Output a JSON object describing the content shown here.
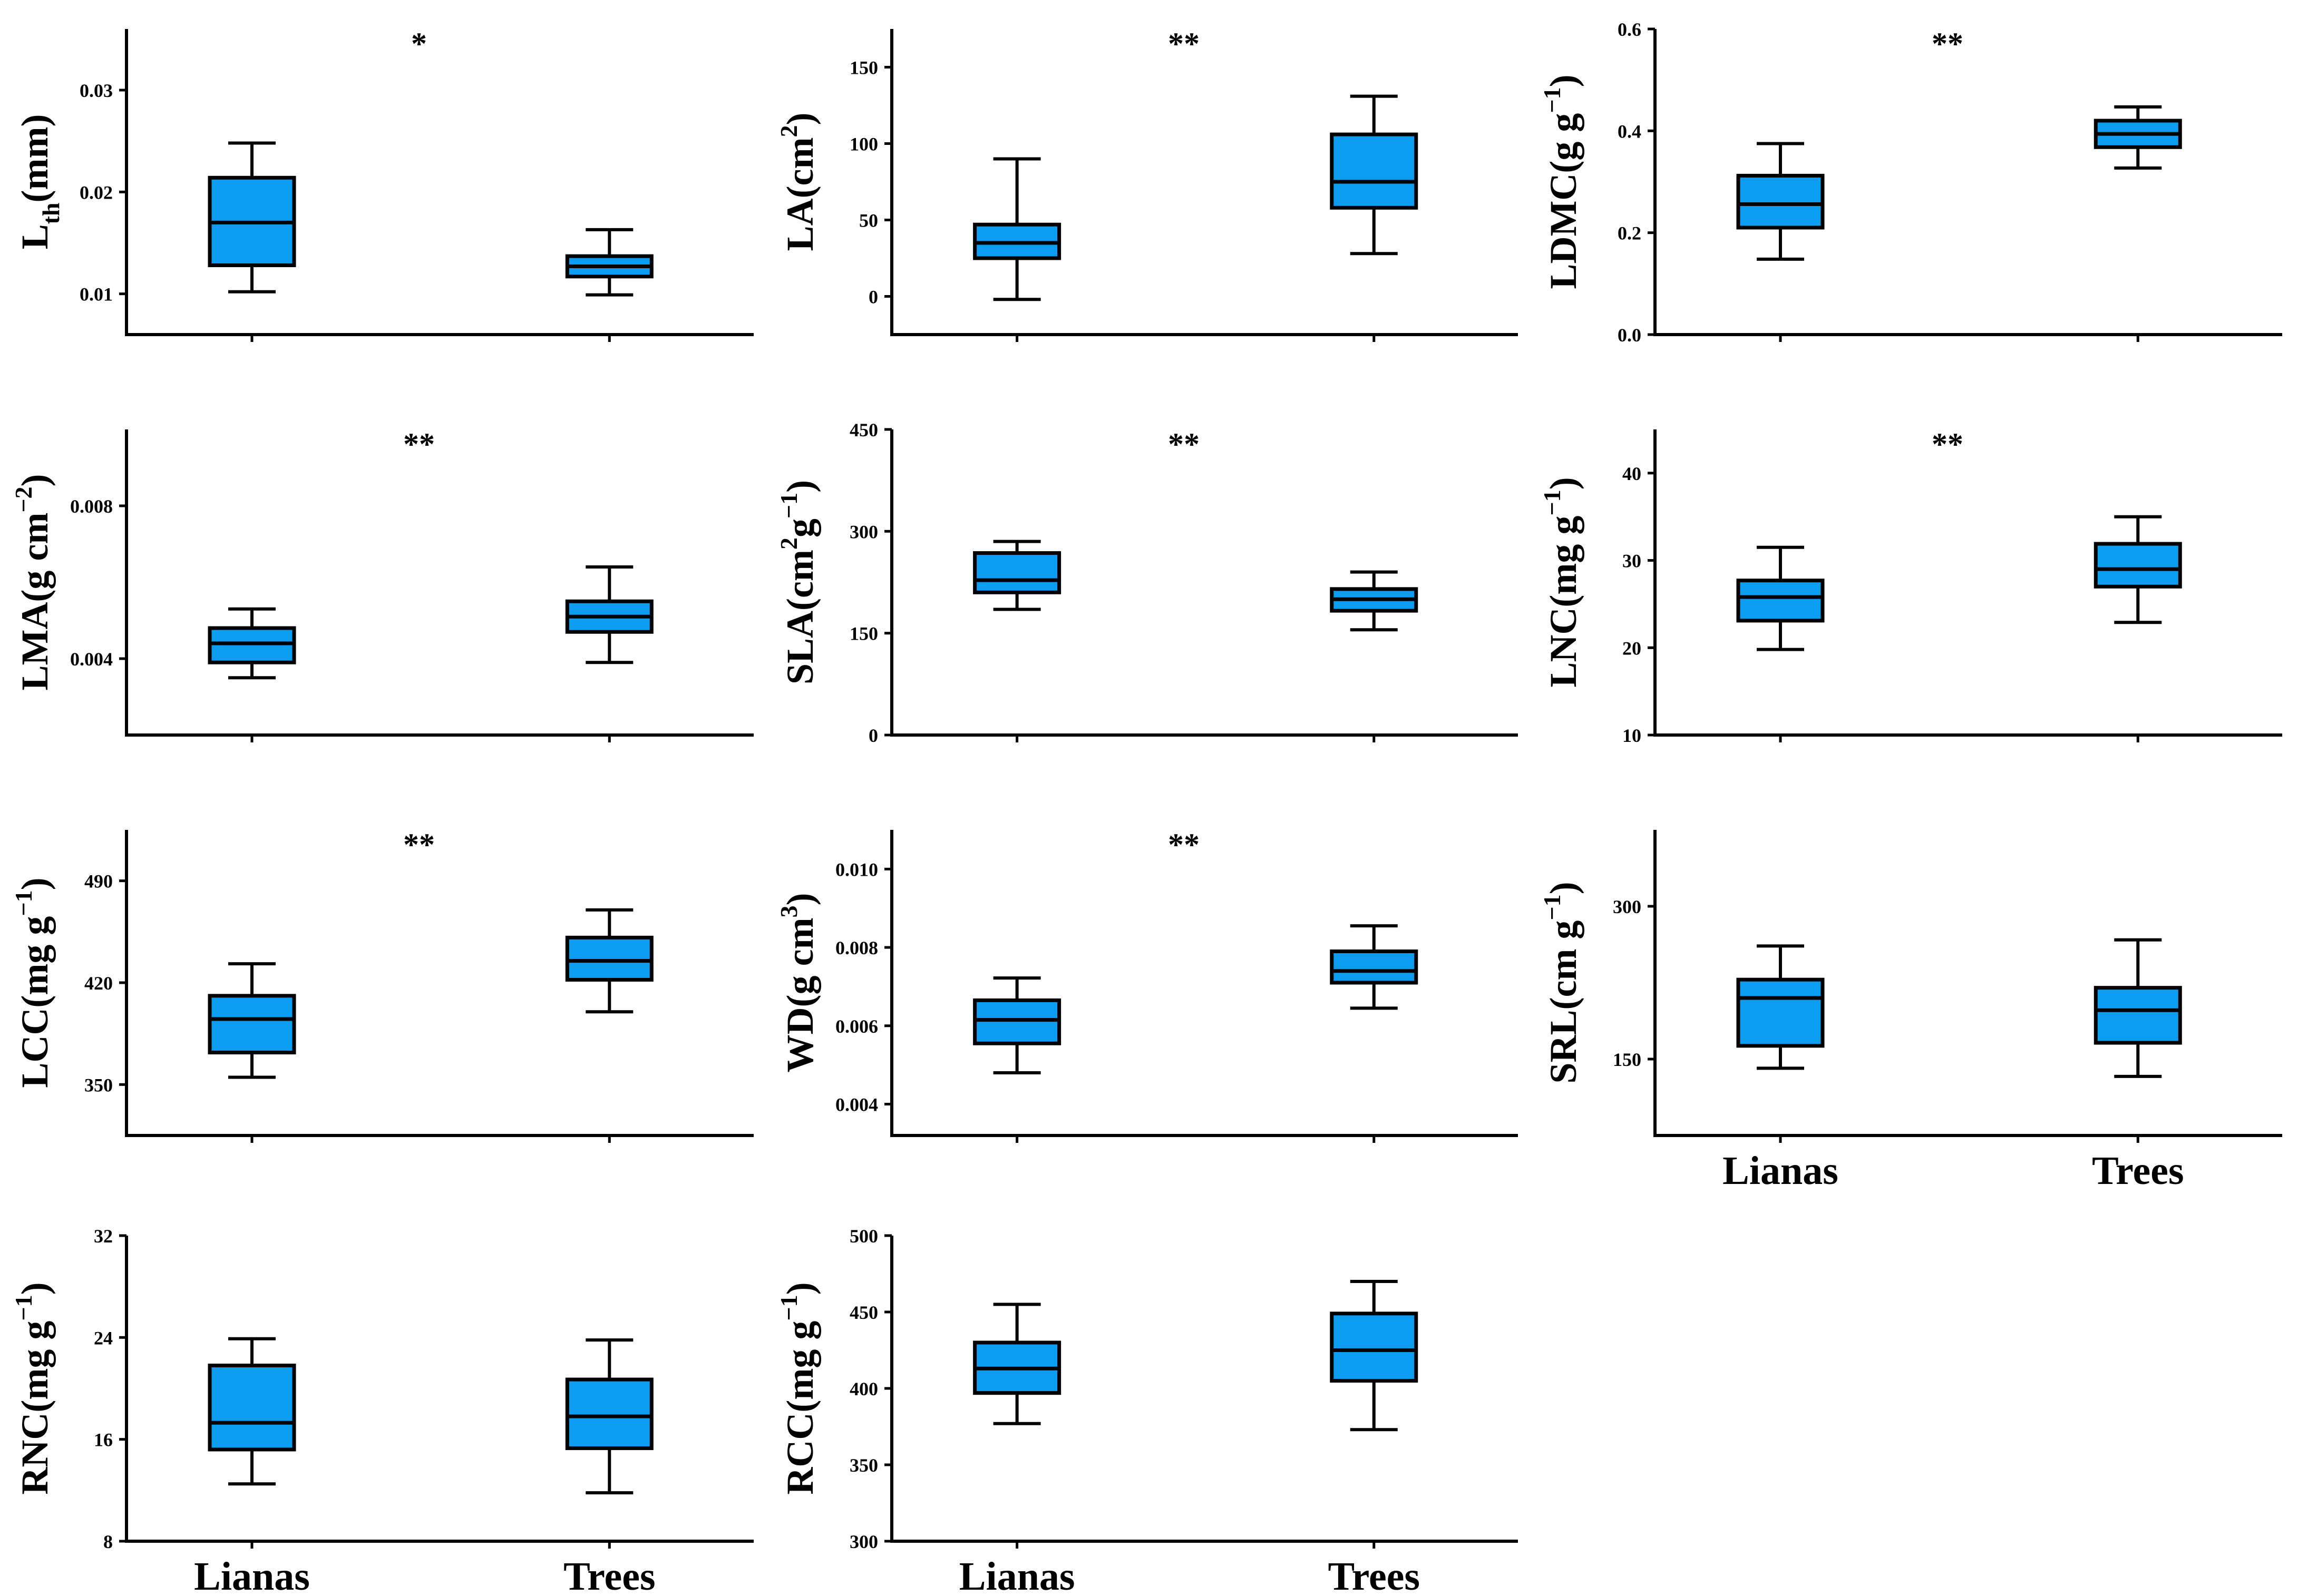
{
  "colors": {
    "box_fill": "#0c9cf0",
    "stroke": "#000000",
    "background": "#ffffff"
  },
  "chart_data": [
    {
      "id": "lth",
      "type": "box",
      "ylabel": "Lth(mm)",
      "ylabel_parts": [
        {
          "t": "L"
        },
        {
          "t": "th",
          "sub": true
        },
        {
          "t": "(mm)"
        }
      ],
      "ylim": [
        0.006,
        0.036
      ],
      "yticks": [
        0.01,
        0.02,
        0.03
      ],
      "tick_labels": [
        "0.01",
        "0.02",
        "0.03"
      ],
      "significance": "*",
      "categories": [
        "Lianas",
        "Trees"
      ],
      "show_category_labels": false,
      "series": [
        {
          "name": "Lianas",
          "whisker_low": 0.0102,
          "q1": 0.0128,
          "median": 0.017,
          "q3": 0.0214,
          "whisker_high": 0.0248
        },
        {
          "name": "Trees",
          "whisker_low": 0.0099,
          "q1": 0.0117,
          "median": 0.0127,
          "q3": 0.0137,
          "whisker_high": 0.0163
        }
      ]
    },
    {
      "id": "la",
      "type": "box",
      "ylabel": "LA(cm2)",
      "ylabel_parts": [
        {
          "t": "LA(cm"
        },
        {
          "t": "2",
          "sup": true
        },
        {
          "t": ")"
        }
      ],
      "ylim": [
        -25,
        175
      ],
      "yticks": [
        0,
        50,
        100,
        150
      ],
      "tick_labels": [
        "0",
        "50",
        "100",
        "150"
      ],
      "significance": "**",
      "categories": [
        "Lianas",
        "Trees"
      ],
      "show_category_labels": false,
      "series": [
        {
          "name": "Lianas",
          "whisker_low": -2,
          "q1": 25,
          "median": 35,
          "q3": 47,
          "whisker_high": 90
        },
        {
          "name": "Trees",
          "whisker_low": 28,
          "q1": 58,
          "median": 75,
          "q3": 106,
          "whisker_high": 131
        }
      ]
    },
    {
      "id": "ldmc",
      "type": "box",
      "ylabel": "LDMC(g g−1)",
      "ylabel_parts": [
        {
          "t": "LDMC(g g"
        },
        {
          "t": "−1",
          "sup": true
        },
        {
          "t": ")"
        }
      ],
      "ylim": [
        0.0,
        0.6
      ],
      "yticks": [
        0.0,
        0.2,
        0.4,
        0.6
      ],
      "tick_labels": [
        "0.0",
        "0.2",
        "0.4",
        "0.6"
      ],
      "significance": "**",
      "categories": [
        "Lianas",
        "Trees"
      ],
      "show_category_labels": false,
      "series": [
        {
          "name": "Lianas",
          "whisker_low": 0.148,
          "q1": 0.21,
          "median": 0.256,
          "q3": 0.312,
          "whisker_high": 0.375
        },
        {
          "name": "Trees",
          "whisker_low": 0.327,
          "q1": 0.368,
          "median": 0.394,
          "q3": 0.42,
          "whisker_high": 0.447
        }
      ]
    },
    {
      "id": "lma",
      "type": "box",
      "ylabel": "LMA(g cm−2)",
      "ylabel_parts": [
        {
          "t": "LMA(g cm"
        },
        {
          "t": "−2",
          "sup": true
        },
        {
          "t": ")"
        }
      ],
      "ylim": [
        0.002,
        0.01
      ],
      "yticks": [
        0.004,
        0.008
      ],
      "tick_labels": [
        "0.004",
        "0.008"
      ],
      "significance": "**",
      "categories": [
        "Lianas",
        "Trees"
      ],
      "show_category_labels": false,
      "series": [
        {
          "name": "Lianas",
          "whisker_low": 0.0035,
          "q1": 0.0039,
          "median": 0.0044,
          "q3": 0.0048,
          "whisker_high": 0.0053
        },
        {
          "name": "Trees",
          "whisker_low": 0.0039,
          "q1": 0.0047,
          "median": 0.0051,
          "q3": 0.0055,
          "whisker_high": 0.0064
        }
      ]
    },
    {
      "id": "sla",
      "type": "box",
      "ylabel": "SLA(cm2g−1)",
      "ylabel_parts": [
        {
          "t": "SLA(cm"
        },
        {
          "t": "2",
          "sup": true
        },
        {
          "t": "g"
        },
        {
          "t": "−1",
          "sup": true
        },
        {
          "t": ")"
        }
      ],
      "ylim": [
        0,
        450
      ],
      "yticks": [
        0,
        150,
        300,
        450
      ],
      "tick_labels": [
        "0",
        "150",
        "300",
        "450"
      ],
      "significance": "**",
      "categories": [
        "Lianas",
        "Trees"
      ],
      "show_category_labels": false,
      "series": [
        {
          "name": "Lianas",
          "whisker_low": 185,
          "q1": 210,
          "median": 228,
          "q3": 268,
          "whisker_high": 285
        },
        {
          "name": "Trees",
          "whisker_low": 155,
          "q1": 183,
          "median": 200,
          "q3": 215,
          "whisker_high": 240
        }
      ]
    },
    {
      "id": "lnc",
      "type": "box",
      "ylabel": "LNC(mg g−1)",
      "ylabel_parts": [
        {
          "t": "LNC(mg g"
        },
        {
          "t": "−1",
          "sup": true
        },
        {
          "t": ")"
        }
      ],
      "ylim": [
        10,
        45
      ],
      "yticks": [
        10,
        20,
        30,
        40
      ],
      "tick_labels": [
        "10",
        "20",
        "30",
        "40"
      ],
      "significance": "**",
      "categories": [
        "Lianas",
        "Trees"
      ],
      "show_category_labels": false,
      "series": [
        {
          "name": "Lianas",
          "whisker_low": 19.8,
          "q1": 23.1,
          "median": 25.8,
          "q3": 27.7,
          "whisker_high": 31.5
        },
        {
          "name": "Trees",
          "whisker_low": 22.9,
          "q1": 27.0,
          "median": 29.0,
          "q3": 31.9,
          "whisker_high": 35.0
        }
      ]
    },
    {
      "id": "lcc",
      "type": "box",
      "ylabel": "LCC(mg g−1)",
      "ylabel_parts": [
        {
          "t": "LCC(mg g"
        },
        {
          "t": "−1",
          "sup": true
        },
        {
          "t": ")"
        }
      ],
      "ylim": [
        315,
        525
      ],
      "yticks": [
        350,
        420,
        490
      ],
      "tick_labels": [
        "350",
        "420",
        "490"
      ],
      "significance": "**",
      "categories": [
        "Lianas",
        "Trees"
      ],
      "show_category_labels": false,
      "series": [
        {
          "name": "Lianas",
          "whisker_low": 355,
          "q1": 372,
          "median": 395,
          "q3": 411,
          "whisker_high": 433
        },
        {
          "name": "Trees",
          "whisker_low": 400,
          "q1": 422,
          "median": 435,
          "q3": 451,
          "whisker_high": 470
        }
      ]
    },
    {
      "id": "wd",
      "type": "box",
      "ylabel": "WD(g cm3)",
      "ylabel_parts": [
        {
          "t": "WD(g cm"
        },
        {
          "t": "3",
          "sup": true
        },
        {
          "t": ")"
        }
      ],
      "ylim": [
        0.0032,
        0.011
      ],
      "yticks": [
        0.004,
        0.006,
        0.008,
        0.01
      ],
      "tick_labels": [
        "0.004",
        "0.006",
        "0.008",
        "0.010"
      ],
      "significance": "**",
      "categories": [
        "Lianas",
        "Trees"
      ],
      "show_category_labels": false,
      "series": [
        {
          "name": "Lianas",
          "whisker_low": 0.0048,
          "q1": 0.00555,
          "median": 0.00615,
          "q3": 0.00665,
          "whisker_high": 0.00722
        },
        {
          "name": "Trees",
          "whisker_low": 0.00645,
          "q1": 0.0071,
          "median": 0.0074,
          "q3": 0.0079,
          "whisker_high": 0.00855
        }
      ]
    },
    {
      "id": "srl",
      "type": "box",
      "ylabel": "SRL(cm g−1)",
      "ylabel_parts": [
        {
          "t": "SRL(cm g"
        },
        {
          "t": "−1",
          "sup": true
        },
        {
          "t": ")"
        }
      ],
      "ylim": [
        75,
        375
      ],
      "yticks": [
        150,
        300
      ],
      "tick_labels": [
        "150",
        "300"
      ],
      "significance": "",
      "categories": [
        "Lianas",
        "Trees"
      ],
      "show_category_labels": true,
      "series": [
        {
          "name": "Lianas",
          "whisker_low": 141,
          "q1": 163,
          "median": 210,
          "q3": 228,
          "whisker_high": 261
        },
        {
          "name": "Trees",
          "whisker_low": 133,
          "q1": 166,
          "median": 198,
          "q3": 220,
          "whisker_high": 267
        }
      ]
    },
    {
      "id": "rnc",
      "type": "box",
      "ylabel": "RNC(mg g−1)",
      "ylabel_parts": [
        {
          "t": "RNC(mg g"
        },
        {
          "t": "−1",
          "sup": true
        },
        {
          "t": ")"
        }
      ],
      "ylim": [
        8,
        32
      ],
      "yticks": [
        8,
        16,
        24,
        32
      ],
      "tick_labels": [
        "8",
        "16",
        "24",
        "32"
      ],
      "significance": "",
      "categories": [
        "Lianas",
        "Trees"
      ],
      "show_category_labels": true,
      "series": [
        {
          "name": "Lianas",
          "whisker_low": 12.5,
          "q1": 15.2,
          "median": 17.3,
          "q3": 21.8,
          "whisker_high": 23.9
        },
        {
          "name": "Trees",
          "whisker_low": 11.8,
          "q1": 15.3,
          "median": 17.8,
          "q3": 20.7,
          "whisker_high": 23.8
        }
      ]
    },
    {
      "id": "rcc",
      "type": "box",
      "ylabel": "RCC(mg g−1)",
      "ylabel_parts": [
        {
          "t": "RCC(mg g"
        },
        {
          "t": "−1",
          "sup": true
        },
        {
          "t": ")"
        }
      ],
      "ylim": [
        300,
        500
      ],
      "yticks": [
        300,
        350,
        400,
        450,
        500
      ],
      "tick_labels": [
        "300",
        "350",
        "400",
        "450",
        "500"
      ],
      "significance": "",
      "categories": [
        "Lianas",
        "Trees"
      ],
      "show_category_labels": true,
      "series": [
        {
          "name": "Lianas",
          "whisker_low": 377,
          "q1": 397,
          "median": 413,
          "q3": 430,
          "whisker_high": 455
        },
        {
          "name": "Trees",
          "whisker_low": 373,
          "q1": 405,
          "median": 425,
          "q3": 449,
          "whisker_high": 470
        }
      ]
    }
  ]
}
